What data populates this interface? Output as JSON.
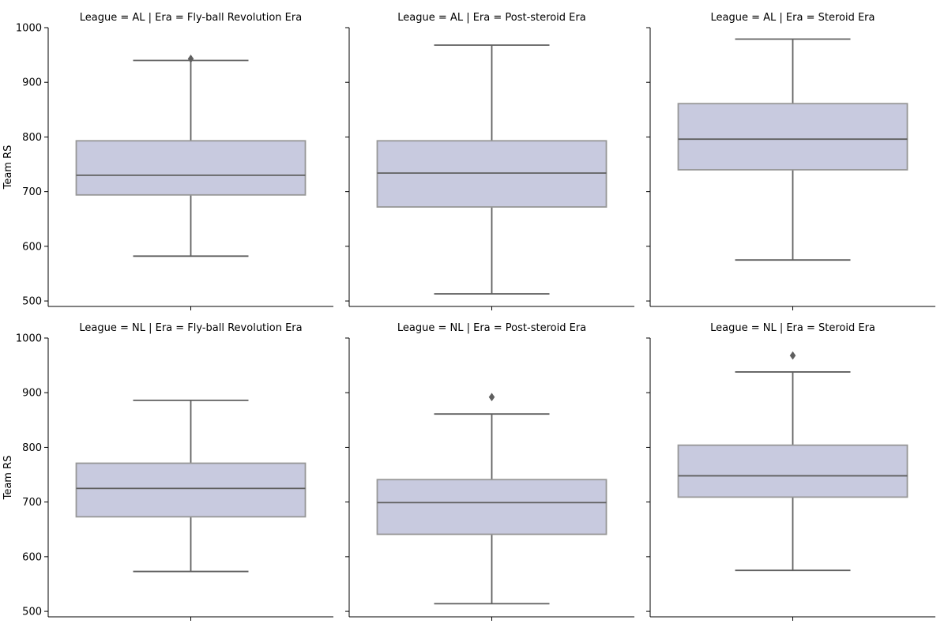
{
  "chart_data": {
    "type": "box",
    "ylabel": "Team RS",
    "ylim": [
      490,
      1000
    ],
    "yticks": [
      500,
      600,
      700,
      800,
      900,
      1000
    ],
    "colors": {
      "box_fill": "#c8cadf",
      "box_stroke": "#979797",
      "line": "#5f5f5f",
      "axis": "#000000"
    },
    "panels": [
      {
        "title": "League = AL | Era = Fly-ball Revolution Era",
        "league": "AL",
        "era": "Fly-ball Revolution Era",
        "whisker_low": 582,
        "q1": 694,
        "median": 730,
        "q3": 793,
        "whisker_high": 940,
        "outliers": [
          943
        ]
      },
      {
        "title": "League = AL | Era = Post-steroid Era",
        "league": "AL",
        "era": "Post-steroid Era",
        "whisker_low": 513,
        "q1": 672,
        "median": 734,
        "q3": 793,
        "whisker_high": 968,
        "outliers": []
      },
      {
        "title": "League = AL | Era = Steroid Era",
        "league": "AL",
        "era": "Steroid Era",
        "whisker_low": 575,
        "q1": 740,
        "median": 796,
        "q3": 861,
        "whisker_high": 979,
        "outliers": []
      },
      {
        "title": "League = NL | Era = Fly-ball Revolution Era",
        "league": "NL",
        "era": "Fly-ball Revolution Era",
        "whisker_low": 573,
        "q1": 673,
        "median": 725,
        "q3": 771,
        "whisker_high": 886,
        "outliers": []
      },
      {
        "title": "League = NL | Era = Post-steroid Era",
        "league": "NL",
        "era": "Post-steroid Era",
        "whisker_low": 514,
        "q1": 641,
        "median": 699,
        "q3": 741,
        "whisker_high": 861,
        "outliers": [
          892
        ]
      },
      {
        "title": "League = NL | Era = Steroid Era",
        "league": "NL",
        "era": "Steroid Era",
        "whisker_low": 575,
        "q1": 709,
        "median": 748,
        "q3": 804,
        "whisker_high": 938,
        "outliers": [
          968
        ]
      }
    ]
  }
}
